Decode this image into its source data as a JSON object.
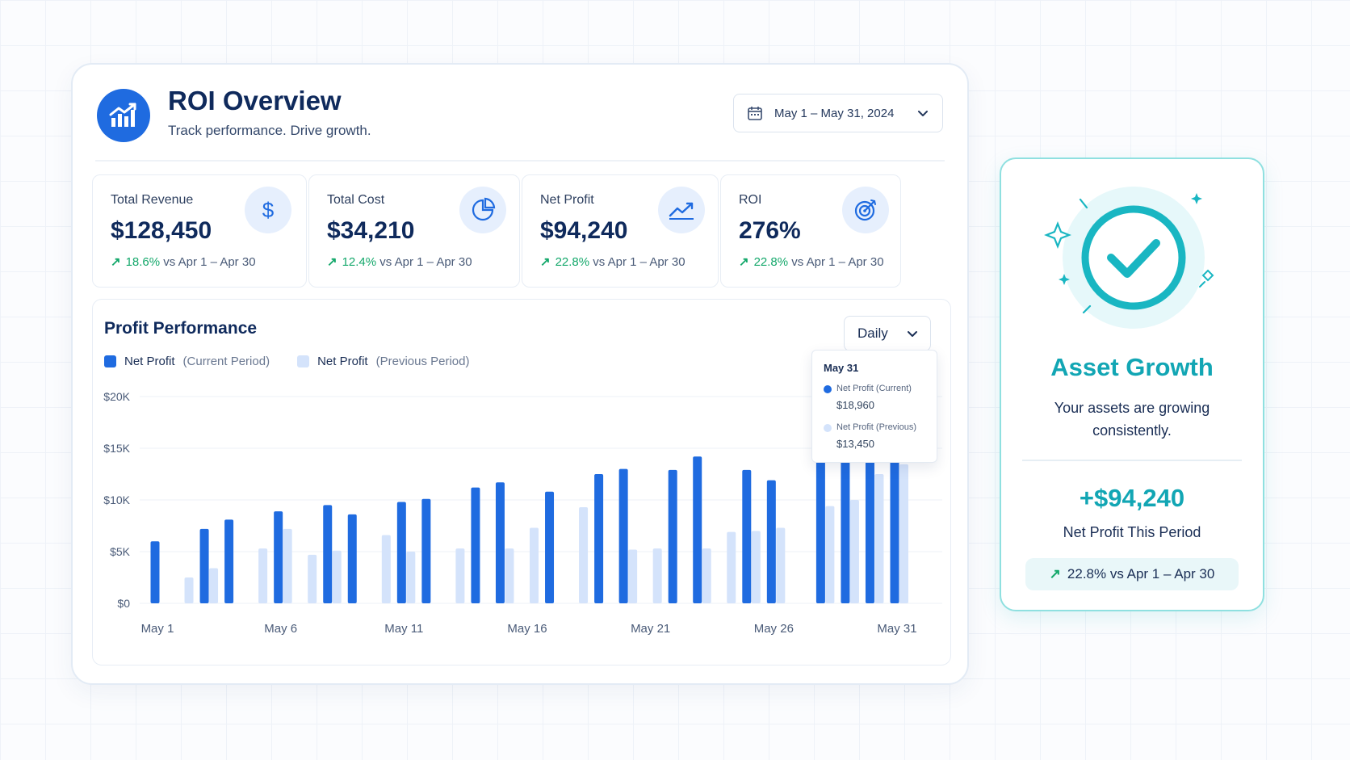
{
  "header": {
    "title": "ROI Overview",
    "subtitle": "Track performance. Drive growth.",
    "date_range": "May 1 – May 31, 2024"
  },
  "kpis": [
    {
      "label": "Total Revenue",
      "value": "$128,450",
      "change": "18.6%",
      "compare": "vs Apr 1 – Apr 30",
      "icon": "dollar-icon"
    },
    {
      "label": "Total Cost",
      "value": "$34,210",
      "change": "12.4%",
      "compare": "vs Apr 1 – Apr 30",
      "icon": "pie-chart-icon"
    },
    {
      "label": "Net Profit",
      "value": "$94,240",
      "change": "22.8%",
      "compare": "vs Apr 1 – Apr 30",
      "icon": "trend-up-icon"
    },
    {
      "label": "ROI",
      "value": "276%",
      "change": "22.8%",
      "compare": "vs Apr 1 – Apr 30",
      "icon": "target-icon"
    }
  ],
  "profit_performance": {
    "title": "Profit Performance",
    "granularity": "Daily",
    "legend": [
      {
        "name": "Net Profit",
        "qualifier": "(Current Period)",
        "color": "#1f6be0"
      },
      {
        "name": "Net Profit",
        "qualifier": "(Previous Period)",
        "color": "#d4e3fb"
      }
    ],
    "tooltip": {
      "date": "May 31",
      "current_label": "Net Profit (Current)",
      "current_value": "$18,960",
      "previous_label": "Net Profit (Previous)",
      "previous_value": "$13,450"
    }
  },
  "chart_data": {
    "type": "bar",
    "categories": [
      "May 1",
      "May 2",
      "May 3",
      "May 4",
      "May 5",
      "May 6",
      "May 7",
      "May 8",
      "May 9",
      "May 10",
      "May 11",
      "May 12",
      "May 13",
      "May 14",
      "May 15",
      "May 16",
      "May 17",
      "May 18",
      "May 19",
      "May 20",
      "May 21",
      "May 22",
      "May 23",
      "May 24",
      "May 25",
      "May 26",
      "May 27",
      "May 28",
      "May 29",
      "May 30",
      "May 31"
    ],
    "series": [
      {
        "name": "Net Profit (Current Period)",
        "values": [
          6000,
          null,
          7200,
          8100,
          null,
          8900,
          null,
          9500,
          8600,
          null,
          9800,
          10100,
          null,
          11200,
          11700,
          null,
          10800,
          null,
          12500,
          13000,
          null,
          12900,
          14200,
          null,
          12900,
          11900,
          null,
          16000,
          18000,
          19000,
          18960
        ]
      },
      {
        "name": "Net Profit (Previous Period)",
        "values": [
          null,
          2500,
          3400,
          null,
          5300,
          7200,
          4700,
          5100,
          null,
          6600,
          5000,
          null,
          5300,
          null,
          5300,
          7300,
          null,
          9300,
          null,
          5200,
          5300,
          null,
          5300,
          6900,
          7000,
          7300,
          null,
          9400,
          10000,
          12500,
          13450
        ]
      }
    ],
    "x_tick_labels": [
      "May 1",
      "May 6",
      "May 11",
      "May 16",
      "May 21",
      "May 26",
      "May 31"
    ],
    "y_tick_labels": [
      "$0",
      "$5K",
      "$10K",
      "$15K",
      "$20K"
    ],
    "ylim": [
      0,
      20000
    ],
    "grid": true,
    "colors": {
      "current": "#1f6be0",
      "previous": "#d4e3fb"
    }
  },
  "asset_growth": {
    "title": "Asset Growth",
    "description": "Your assets are growing consistently.",
    "amount": "+$94,240",
    "amount_label": "Net Profit This Period",
    "change": "22.8% vs Apr 1 – Apr 30",
    "icon": "check-circle-icon",
    "color": "#12a6b4"
  },
  "icons": {
    "up_arrow": "↗",
    "chevron": "chevron-down-icon",
    "calendar": "calendar-icon",
    "logo": "bar-chart-growth-icon"
  }
}
